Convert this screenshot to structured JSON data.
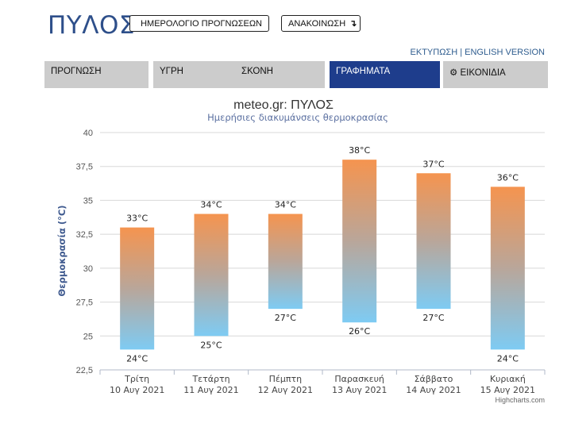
{
  "header": {
    "city": "ΠΥΛΟΣ",
    "calendar_button": "ΗΜΕΡΟΛΟΓΙΟ ΠΡΟΓΝΩΣΕΩΝ",
    "announcement_button": "ΑΝΑΚΟΙΝΩΣΗ",
    "print_link": "ΕΚΤΥΠΩΣΗ",
    "link_separator": " | ",
    "english_link": "ENGLISH VERSION"
  },
  "tabs": [
    {
      "label": "ΠΡΟΓΝΩΣΗ",
      "active": false
    },
    {
      "label": "ΥΓΡΗ",
      "active": false
    },
    {
      "label": "ΣΚΟΝΗ",
      "active": false
    },
    {
      "label": "ΓΡΑΦΗΜΑΤΑ",
      "active": true
    },
    {
      "label": "ΕΙΚΟΝΙΔΙΑ",
      "active": false
    }
  ],
  "colors": {
    "accent": "#1e3d8c",
    "title": "#333333",
    "subtitle": "#5a6fa0",
    "bar_top": "#f5944f",
    "bar_bottom": "#7ecbf3",
    "grid": "#d8d8d8"
  },
  "chart_data": {
    "type": "bar",
    "title": "meteo.gr: ΠΥΛΟΣ",
    "subtitle": "Ημερήσιες διακυμάνσεις θερμοκρασίας",
    "ylabel": "Θερμοκρασία (°C)",
    "ylim": [
      22.5,
      40
    ],
    "yticks": [
      22.5,
      25,
      27.5,
      30,
      32.5,
      35,
      37.5,
      40
    ],
    "ytick_labels": [
      "22,5",
      "25",
      "27,5",
      "30",
      "32,5",
      "35",
      "37,5",
      "40"
    ],
    "categories": [
      {
        "day": "Τρίτη",
        "date": "10 Αυγ 2021"
      },
      {
        "day": "Τετάρτη",
        "date": "11 Αυγ 2021"
      },
      {
        "day": "Πέμπτη",
        "date": "12 Αυγ 2021"
      },
      {
        "day": "Παρασκευή",
        "date": "13 Αυγ 2021"
      },
      {
        "day": "Σάββατο",
        "date": "14 Αυγ 2021"
      },
      {
        "day": "Κυριακή",
        "date": "15 Αυγ 2021"
      }
    ],
    "ranges": [
      {
        "low": 24,
        "high": 33,
        "low_label": "24°C",
        "high_label": "33°C"
      },
      {
        "low": 25,
        "high": 34,
        "low_label": "25°C",
        "high_label": "34°C"
      },
      {
        "low": 27,
        "high": 34,
        "low_label": "27°C",
        "high_label": "34°C"
      },
      {
        "low": 26,
        "high": 38,
        "low_label": "26°C",
        "high_label": "38°C"
      },
      {
        "low": 27,
        "high": 37,
        "low_label": "27°C",
        "high_label": "37°C"
      },
      {
        "low": 24,
        "high": 36,
        "low_label": "24°C",
        "high_label": "36°C"
      }
    ],
    "grid": true,
    "credit": "Highcharts.com"
  }
}
